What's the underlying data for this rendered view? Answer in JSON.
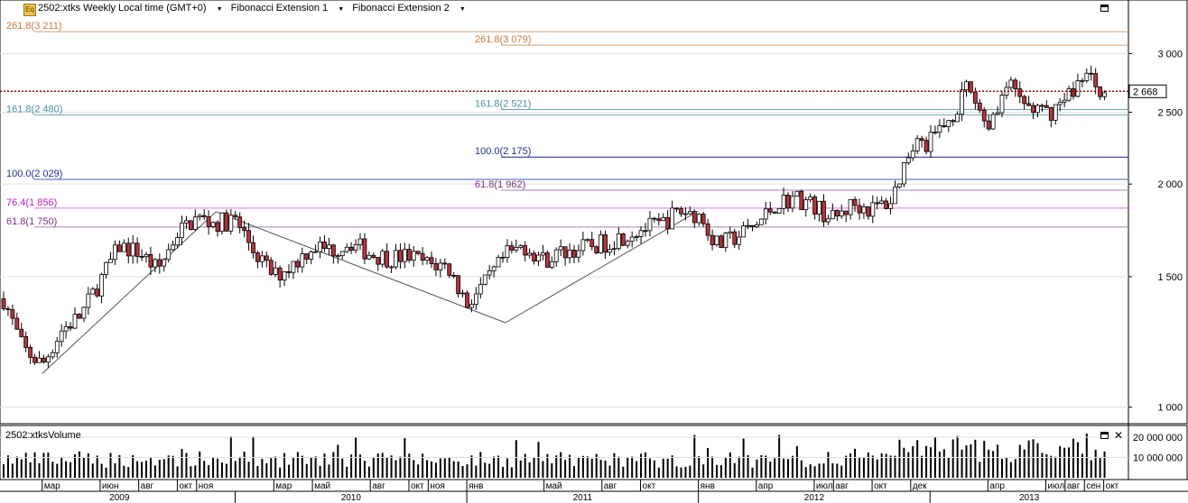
{
  "header": {
    "symbol_label": "2502:xtks Weekly Local time (GMT+0)",
    "indicator_1": "Fibonacci Extension 1",
    "indicator_2": "Fibonacci Extension 2",
    "icon_text": "Eq"
  },
  "volume_panel": {
    "title": "2502:xtksVolume",
    "y_tick_labels": [
      "20 000 000",
      "10 000 000"
    ]
  },
  "price_axis": {
    "tick_labels": [
      "3 000",
      "2 500",
      "2 000",
      "1 500",
      "1 000"
    ],
    "last_price_label": "2 668"
  },
  "fib_levels": {
    "ext1": [
      {
        "label": "261.8(3 211)",
        "value": 3211,
        "color": "#d2a07a"
      },
      {
        "label": "161.8(2 480)",
        "value": 2480,
        "color": "#6a9fb0"
      },
      {
        "label": "100.0(2 029)",
        "value": 2029,
        "color": "#4060c0"
      },
      {
        "label": "76.4(1 856)",
        "value": 1856,
        "color": "#e070e0"
      },
      {
        "label": "61.8(1 750)",
        "value": 1750,
        "color": "#a080b0"
      }
    ],
    "ext2": [
      {
        "label": "261.8(3 079)",
        "value": 3079,
        "color": "#d2a07a"
      },
      {
        "label": "161.8(2 521)",
        "value": 2521,
        "color": "#6a9fb0"
      },
      {
        "label": "100.0(2 175)",
        "value": 2175,
        "color": "#1a1a80"
      },
      {
        "label": "61.8(1 962)",
        "value": 1962,
        "color": "#a080b0"
      }
    ],
    "label_colors": {
      "261.8": "#c8783c",
      "161.8": "#4a90a8",
      "100.0": "#2030a0",
      "76.4": "#c020c0",
      "61.8": "#803080"
    }
  },
  "time_axis": {
    "months": [
      "мар",
      "июн",
      "авг",
      "окт",
      "ноя",
      "мар",
      "май",
      "авг",
      "окт",
      "ноя",
      "янв",
      "май",
      "авг",
      "окт",
      "янв",
      "апр",
      "июл",
      "авг",
      "окт",
      "дек",
      "апр",
      "июл",
      "авг",
      "сен",
      "окт"
    ],
    "years": [
      "2009",
      "2010",
      "2011",
      "2012",
      "2013"
    ]
  },
  "chart_data": {
    "type": "candlestick",
    "title": "2502:xtks Weekly",
    "y_scale": "log",
    "price_range": [
      950,
      3350
    ],
    "last_price": 2668,
    "volume_range": [
      0,
      24000000
    ],
    "x_start": "2009-01",
    "x_end": "2013-11",
    "anchor_points": [
      {
        "date": "2009-01",
        "close": 1400
      },
      {
        "date": "2009-02",
        "close": 1200
      },
      {
        "date": "2009-03",
        "close": 1140
      },
      {
        "date": "2009-04",
        "close": 1270
      },
      {
        "date": "2009-05",
        "close": 1330
      },
      {
        "date": "2009-06",
        "close": 1480
      },
      {
        "date": "2009-07",
        "close": 1650
      },
      {
        "date": "2009-08",
        "close": 1620
      },
      {
        "date": "2009-09",
        "close": 1530
      },
      {
        "date": "2009-10",
        "close": 1720
      },
      {
        "date": "2009-11",
        "close": 1800
      },
      {
        "date": "2009-12",
        "close": 1770
      },
      {
        "date": "2010-01",
        "close": 1790
      },
      {
        "date": "2010-02",
        "close": 1620
      },
      {
        "date": "2010-03",
        "close": 1500
      },
      {
        "date": "2010-04",
        "close": 1560
      },
      {
        "date": "2010-05",
        "close": 1650
      },
      {
        "date": "2010-06",
        "close": 1630
      },
      {
        "date": "2010-07",
        "close": 1670
      },
      {
        "date": "2010-08",
        "close": 1610
      },
      {
        "date": "2010-09",
        "close": 1590
      },
      {
        "date": "2010-10",
        "close": 1600
      },
      {
        "date": "2010-11",
        "close": 1560
      },
      {
        "date": "2010-12",
        "close": 1550
      },
      {
        "date": "2011-01",
        "close": 1380
      },
      {
        "date": "2011-02",
        "close": 1470
      },
      {
        "date": "2011-03",
        "close": 1600
      },
      {
        "date": "2011-04",
        "close": 1650
      },
      {
        "date": "2011-05",
        "close": 1580
      },
      {
        "date": "2011-06",
        "close": 1620
      },
      {
        "date": "2011-07",
        "close": 1640
      },
      {
        "date": "2011-08",
        "close": 1660
      },
      {
        "date": "2011-09",
        "close": 1700
      },
      {
        "date": "2011-10",
        "close": 1740
      },
      {
        "date": "2011-11",
        "close": 1760
      },
      {
        "date": "2011-12",
        "close": 1840
      },
      {
        "date": "2012-01",
        "close": 1820
      },
      {
        "date": "2012-02",
        "close": 1650
      },
      {
        "date": "2012-03",
        "close": 1700
      },
      {
        "date": "2012-04",
        "close": 1760
      },
      {
        "date": "2012-05",
        "close": 1880
      },
      {
        "date": "2012-06",
        "close": 1920
      },
      {
        "date": "2012-07",
        "close": 1870
      },
      {
        "date": "2012-08",
        "close": 1790
      },
      {
        "date": "2012-09",
        "close": 1880
      },
      {
        "date": "2012-10",
        "close": 1850
      },
      {
        "date": "2012-11",
        "close": 1900
      },
      {
        "date": "2012-12",
        "close": 2250
      },
      {
        "date": "2013-01",
        "close": 2280
      },
      {
        "date": "2013-02",
        "close": 2450
      },
      {
        "date": "2013-03",
        "close": 2700
      },
      {
        "date": "2013-04",
        "close": 2400
      },
      {
        "date": "2013-05",
        "close": 2720
      },
      {
        "date": "2013-06",
        "close": 2550
      },
      {
        "date": "2013-07",
        "close": 2480
      },
      {
        "date": "2013-08",
        "close": 2600
      },
      {
        "date": "2013-09",
        "close": 2820
      },
      {
        "date": "2013-10",
        "close": 2668
      }
    ],
    "zigzag_1": [
      {
        "date": "2009-03",
        "price": 1110
      },
      {
        "date": "2009-12",
        "price": 1835
      },
      {
        "date": "2011-03",
        "price": 1300
      }
    ],
    "zigzag_2": [
      {
        "date": "2011-03",
        "price": 1300
      },
      {
        "date": "2012-01",
        "price": 1840
      }
    ]
  },
  "colors": {
    "up_candle": "#ffffff",
    "down_candle": "#c0303a",
    "wick": "#000000",
    "grid": "#e0e0e0",
    "last_price_line": "#a00000",
    "volume_bar": "#000000"
  }
}
